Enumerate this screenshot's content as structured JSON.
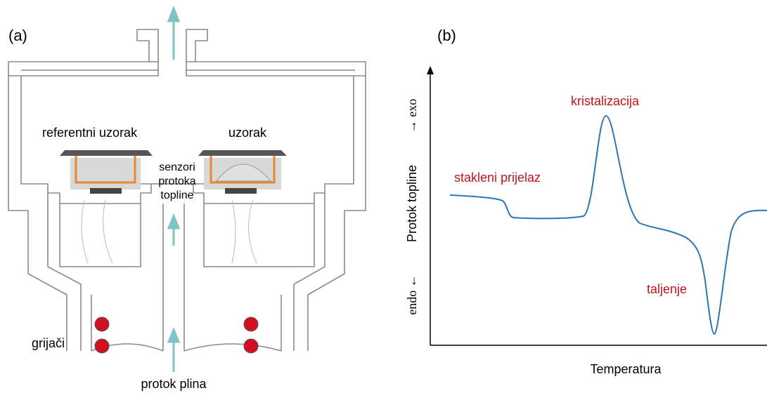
{
  "panel_a": {
    "label": "(a)",
    "reference": "referentni uzorak",
    "sample": "uzorak",
    "sensors": [
      "senzori",
      "protoka",
      "topline"
    ],
    "heaters": "grijači",
    "gas_flow": "protok plina"
  },
  "panel_b": {
    "label": "(b)",
    "x_label": "Temperatura",
    "y_label": "Protok topline",
    "y_exo": "→ exo",
    "y_endo": "endo ←",
    "annotations": {
      "glass": "stakleni prijelaz",
      "crystal": "kristalizacija",
      "melt": "taljenje"
    }
  }
}
